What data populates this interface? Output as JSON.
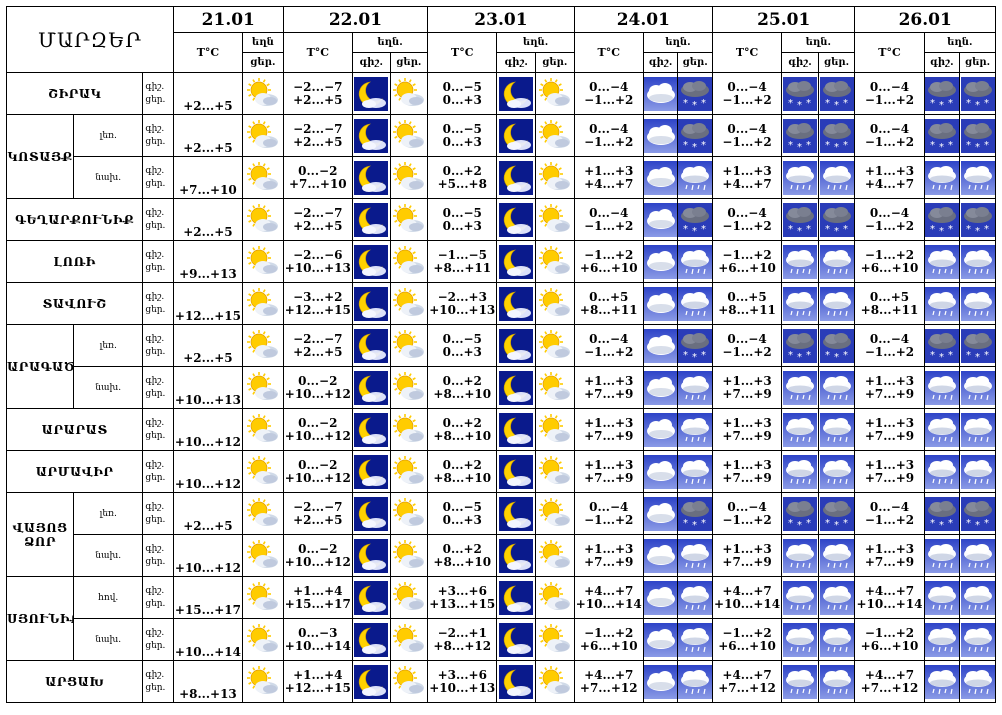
{
  "header": {
    "regions_label": "ՄԱՐԶԵՐ",
    "dates": [
      "21.01",
      "22.01",
      "23.01",
      "24.01",
      "25.01",
      "26.01"
    ],
    "temp_label": "T°C",
    "sky_label_short": "եղն",
    "sky_label": "եղն.",
    "day_label": "ցեր.",
    "night_label": "գիշ."
  },
  "row_labels": {
    "night": "գիշ.",
    "day": "ցեր."
  },
  "day21": {
    "icon": "partly-sunny-icon"
  },
  "rows": [
    {
      "region": "ՇԻՐԱԿ",
      "sub": "",
      "d21": "+2...+5",
      "t": [
        [
          "−2...−7",
          "+2...+5"
        ],
        [
          "0...−5",
          "0...+3"
        ],
        [
          "0...−4",
          "−1...+2"
        ],
        [
          "0...−4",
          "−1...+2"
        ],
        [
          "0...−4",
          "−1...+2"
        ]
      ],
      "i": [
        [
          "moon",
          "sun"
        ],
        [
          "moon",
          "sun"
        ],
        [
          "cloud",
          "snow"
        ],
        [
          "snow",
          "snow"
        ],
        [
          "snow",
          "snow"
        ]
      ]
    },
    {
      "region": "ԿՈՏԱՅՔ",
      "sub": "լեռ.",
      "d21": "+2...+5",
      "t": [
        [
          "−2...−7",
          "+2...+5"
        ],
        [
          "0...−5",
          "0...+3"
        ],
        [
          "0...−4",
          "−1...+2"
        ],
        [
          "0...−4",
          "−1...+2"
        ],
        [
          "0...−4",
          "−1...+2"
        ]
      ],
      "i": [
        [
          "moon",
          "sun"
        ],
        [
          "moon",
          "sun"
        ],
        [
          "cloud",
          "snow"
        ],
        [
          "snow",
          "snow"
        ],
        [
          "snow",
          "snow"
        ]
      ]
    },
    {
      "region": "",
      "sub": "նախ.",
      "d21": "+7...+10",
      "t": [
        [
          "0...−2",
          "+7...+10"
        ],
        [
          "0...+2",
          "+5...+8"
        ],
        [
          "+1...+3",
          "+4...+7"
        ],
        [
          "+1...+3",
          "+4...+7"
        ],
        [
          "+1...+3",
          "+4...+7"
        ]
      ],
      "i": [
        [
          "moon",
          "sun"
        ],
        [
          "moon",
          "sun"
        ],
        [
          "cloud",
          "rain"
        ],
        [
          "rain",
          "rain"
        ],
        [
          "rain",
          "rain"
        ]
      ]
    },
    {
      "region": "ԳԵՂԱՐՔՈՒՆԻՔ",
      "sub": "",
      "d21": "+2...+5",
      "t": [
        [
          "−2...−7",
          "+2...+5"
        ],
        [
          "0...−5",
          "0...+3"
        ],
        [
          "0...−4",
          "−1...+2"
        ],
        [
          "0...−4",
          "−1...+2"
        ],
        [
          "0...−4",
          "−1...+2"
        ]
      ],
      "i": [
        [
          "moon",
          "sun"
        ],
        [
          "moon",
          "sun"
        ],
        [
          "cloud",
          "snow"
        ],
        [
          "snow",
          "snow"
        ],
        [
          "snow",
          "snow"
        ]
      ]
    },
    {
      "region": "ԼՈՌԻ",
      "sub": "",
      "d21": "+9...+13",
      "t": [
        [
          "−2...−6",
          "+10...+13"
        ],
        [
          "−1...−5",
          "+8...+11"
        ],
        [
          "−1...+2",
          "+6...+10"
        ],
        [
          "−1...+2",
          "+6...+10"
        ],
        [
          "−1...+2",
          "+6...+10"
        ]
      ],
      "i": [
        [
          "moon",
          "sun"
        ],
        [
          "moon",
          "sun"
        ],
        [
          "cloud",
          "rain"
        ],
        [
          "rain",
          "rain"
        ],
        [
          "rain",
          "rain"
        ]
      ]
    },
    {
      "region": "ՏԱՎՈՒՇ",
      "sub": "",
      "d21": "+12...+15",
      "t": [
        [
          "−3...+2",
          "+12...+15"
        ],
        [
          "−2...+3",
          "+10...+13"
        ],
        [
          "0...+5",
          "+8...+11"
        ],
        [
          "0...+5",
          "+8...+11"
        ],
        [
          "0...+5",
          "+8...+11"
        ]
      ],
      "i": [
        [
          "moon",
          "sun"
        ],
        [
          "moon",
          "sun"
        ],
        [
          "cloud",
          "rain"
        ],
        [
          "rain",
          "rain"
        ],
        [
          "rain",
          "rain"
        ]
      ]
    },
    {
      "region": "ԱՐԱԳԱԾՈՏՆ",
      "sub": "լեռ.",
      "d21": "+2...+5",
      "t": [
        [
          "−2...−7",
          "+2...+5"
        ],
        [
          "0...−5",
          "0...+3"
        ],
        [
          "0...−4",
          "−1...+2"
        ],
        [
          "0...−4",
          "−1...+2"
        ],
        [
          "0...−4",
          "−1...+2"
        ]
      ],
      "i": [
        [
          "moon",
          "sun"
        ],
        [
          "moon",
          "sun"
        ],
        [
          "cloud",
          "snow"
        ],
        [
          "snow",
          "snow"
        ],
        [
          "snow",
          "snow"
        ]
      ]
    },
    {
      "region": "",
      "sub": "նախ.",
      "d21": "+10...+13",
      "t": [
        [
          "0...−2",
          "+10...+12"
        ],
        [
          "0...+2",
          "+8...+10"
        ],
        [
          "+1...+3",
          "+7...+9"
        ],
        [
          "+1...+3",
          "+7...+9"
        ],
        [
          "+1...+3",
          "+7...+9"
        ]
      ],
      "i": [
        [
          "moon",
          "sun"
        ],
        [
          "moon",
          "sun"
        ],
        [
          "cloud",
          "rain"
        ],
        [
          "rain",
          "rain"
        ],
        [
          "rain",
          "rain"
        ]
      ]
    },
    {
      "region": "ԱՐԱՐԱՏ",
      "sub": "",
      "d21": "+10...+12",
      "t": [
        [
          "0...−2",
          "+10...+12"
        ],
        [
          "0...+2",
          "+8...+10"
        ],
        [
          "+1...+3",
          "+7...+9"
        ],
        [
          "+1...+3",
          "+7...+9"
        ],
        [
          "+1...+3",
          "+7...+9"
        ]
      ],
      "i": [
        [
          "moon",
          "sun"
        ],
        [
          "moon",
          "sun"
        ],
        [
          "cloud",
          "rain"
        ],
        [
          "rain",
          "rain"
        ],
        [
          "rain",
          "rain"
        ]
      ]
    },
    {
      "region": "ԱՐՄԱՎԻՐ",
      "sub": "",
      "d21": "+10...+12",
      "t": [
        [
          "0...−2",
          "+10...+12"
        ],
        [
          "0...+2",
          "+8...+10"
        ],
        [
          "+1...+3",
          "+7...+9"
        ],
        [
          "+1...+3",
          "+7...+9"
        ],
        [
          "+1...+3",
          "+7...+9"
        ]
      ],
      "i": [
        [
          "moon",
          "sun"
        ],
        [
          "moon",
          "sun"
        ],
        [
          "cloud",
          "rain"
        ],
        [
          "rain",
          "rain"
        ],
        [
          "rain",
          "rain"
        ]
      ]
    },
    {
      "region": "ՎԱՅՈՑ ՁՈՐ",
      "sub": "լեռ.",
      "d21": "+2...+5",
      "t": [
        [
          "−2...−7",
          "+2...+5"
        ],
        [
          "0...−5",
          "0...+3"
        ],
        [
          "0...−4",
          "−1...+2"
        ],
        [
          "0...−4",
          "−1...+2"
        ],
        [
          "0...−4",
          "−1...+2"
        ]
      ],
      "i": [
        [
          "moon",
          "sun"
        ],
        [
          "moon",
          "sun"
        ],
        [
          "cloud",
          "snow"
        ],
        [
          "snow",
          "snow"
        ],
        [
          "snow",
          "snow"
        ]
      ]
    },
    {
      "region": "",
      "sub": "նախ.",
      "d21": "+10...+12",
      "t": [
        [
          "0...−2",
          "+10...+12"
        ],
        [
          "0...+2",
          "+8...+10"
        ],
        [
          "+1...+3",
          "+7...+9"
        ],
        [
          "+1...+3",
          "+7...+9"
        ],
        [
          "+1...+3",
          "+7...+9"
        ]
      ],
      "i": [
        [
          "moon",
          "sun"
        ],
        [
          "moon",
          "sun"
        ],
        [
          "cloud",
          "rain"
        ],
        [
          "rain",
          "rain"
        ],
        [
          "rain",
          "rain"
        ]
      ]
    },
    {
      "region": "ՍՅՈՒՆԻՔ",
      "sub": "հով.",
      "d21": "+15...+17",
      "t": [
        [
          "+1...+4",
          "+15...+17"
        ],
        [
          "+3...+6",
          "+13...+15"
        ],
        [
          "+4...+7",
          "+10...+14"
        ],
        [
          "+4...+7",
          "+10...+14"
        ],
        [
          "+4...+7",
          "+10...+14"
        ]
      ],
      "i": [
        [
          "moon",
          "sun"
        ],
        [
          "moon",
          "sun"
        ],
        [
          "cloud",
          "rain"
        ],
        [
          "rain",
          "rain"
        ],
        [
          "rain",
          "rain"
        ]
      ]
    },
    {
      "region": "",
      "sub": "նախ.",
      "d21": "+10...+14",
      "t": [
        [
          "0...−3",
          "+10...+14"
        ],
        [
          "−2...+1",
          "+8...+12"
        ],
        [
          "−1...+2",
          "+6...+10"
        ],
        [
          "−1...+2",
          "+6...+10"
        ],
        [
          "−1...+2",
          "+6...+10"
        ]
      ],
      "i": [
        [
          "moon",
          "sun"
        ],
        [
          "moon",
          "sun"
        ],
        [
          "cloud",
          "rain"
        ],
        [
          "rain",
          "rain"
        ],
        [
          "rain",
          "rain"
        ]
      ]
    },
    {
      "region": "ԱՐՑԱԽ",
      "sub": "",
      "d21": "+8...+13",
      "t": [
        [
          "+1...+4",
          "+12...+15"
        ],
        [
          "+3...+6",
          "+10...+13"
        ],
        [
          "+4...+7",
          "+7...+12"
        ],
        [
          "+4...+7",
          "+7...+12"
        ],
        [
          "+4...+7",
          "+7...+12"
        ]
      ],
      "i": [
        [
          "moon",
          "sun"
        ],
        [
          "moon",
          "sun"
        ],
        [
          "cloud",
          "rain"
        ],
        [
          "rain",
          "rain"
        ],
        [
          "rain",
          "rain"
        ]
      ]
    }
  ],
  "colors": {
    "night_bg": "#0a1a8c",
    "moon": "#ffd200",
    "sun": "#ffcc00",
    "cloud": "#ffffff",
    "sky": "#5a70d0"
  }
}
